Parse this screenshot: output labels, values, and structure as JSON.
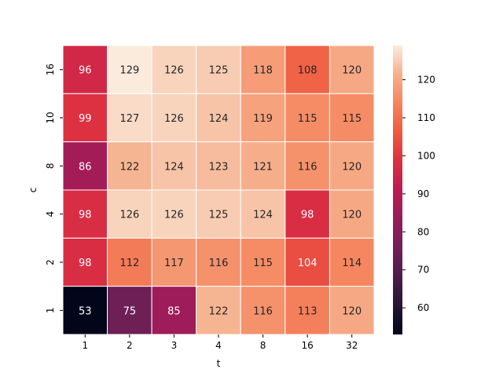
{
  "chart_data": {
    "type": "heatmap",
    "title": "",
    "xlabel": "t",
    "ylabel": "c",
    "x_categories": [
      "1",
      "2",
      "3",
      "4",
      "8",
      "16",
      "32"
    ],
    "y_categories": [
      "16",
      "10",
      "8",
      "4",
      "2",
      "1"
    ],
    "values": [
      [
        96,
        129,
        126,
        125,
        118,
        108,
        120
      ],
      [
        99,
        127,
        126,
        124,
        119,
        115,
        115
      ],
      [
        86,
        122,
        124,
        123,
        121,
        116,
        120
      ],
      [
        98,
        126,
        126,
        125,
        124,
        98,
        120
      ],
      [
        98,
        112,
        117,
        116,
        115,
        104,
        114
      ],
      [
        53,
        75,
        85,
        122,
        116,
        113,
        120
      ]
    ],
    "vmin": 53,
    "vmax": 129,
    "colormap": "rocket",
    "colorbar_ticks": [
      "60",
      "70",
      "80",
      "90",
      "100",
      "110",
      "120"
    ],
    "grid": true
  }
}
